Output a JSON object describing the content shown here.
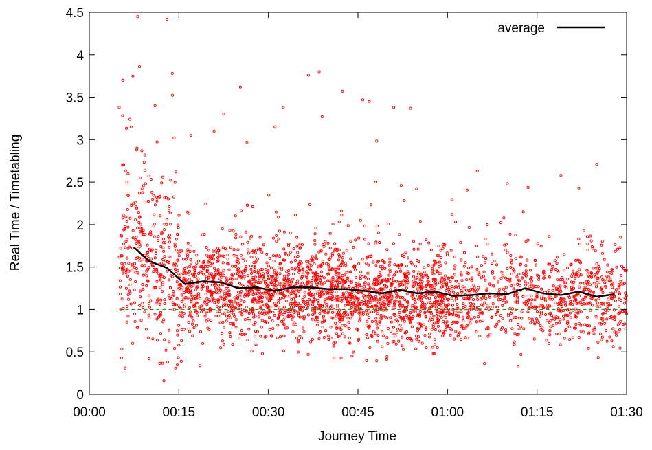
{
  "chart_data": {
    "type": "scatter",
    "xlabel": "Journey Time",
    "ylabel": "Real Time / Timetabling",
    "xlim": [
      0,
      90
    ],
    "ylim": [
      0,
      4.5
    ],
    "x_unit": "minutes",
    "x_ticks": [
      {
        "value": 0,
        "label": "00:00"
      },
      {
        "value": 15,
        "label": "00:15"
      },
      {
        "value": 30,
        "label": "00:30"
      },
      {
        "value": 45,
        "label": "00:45"
      },
      {
        "value": 60,
        "label": "01:00"
      },
      {
        "value": 75,
        "label": "01:15"
      },
      {
        "value": 90,
        "label": "01:30"
      }
    ],
    "y_ticks": [
      {
        "value": 0,
        "label": "0"
      },
      {
        "value": 0.5,
        "label": "0.5"
      },
      {
        "value": 1,
        "label": "1"
      },
      {
        "value": 1.5,
        "label": "1.5"
      },
      {
        "value": 2,
        "label": "2"
      },
      {
        "value": 2.5,
        "label": "2.5"
      },
      {
        "value": 3,
        "label": "3"
      },
      {
        "value": 3.5,
        "label": "3.5"
      },
      {
        "value": 4,
        "label": "4"
      },
      {
        "value": 4.5,
        "label": "4.5"
      }
    ],
    "grid": false,
    "legend": {
      "position": "top-right",
      "entries": [
        {
          "label": "average",
          "color": "#000000"
        }
      ]
    },
    "reference_line": {
      "y": 1,
      "color": "#2e8b2e",
      "style": "dashed"
    },
    "scatter_color": "#ff0000",
    "series": [
      {
        "name": "average",
        "type": "line",
        "color": "#000000",
        "x": [
          7.5,
          10,
          13,
          16,
          19,
          22,
          25,
          28,
          31,
          34,
          37,
          40,
          43,
          46,
          49,
          52,
          55,
          58,
          61,
          64,
          67,
          70,
          73,
          76,
          79,
          82,
          85,
          88
        ],
        "y": [
          1.73,
          1.57,
          1.49,
          1.3,
          1.33,
          1.32,
          1.25,
          1.26,
          1.22,
          1.26,
          1.26,
          1.24,
          1.24,
          1.22,
          1.19,
          1.23,
          1.19,
          1.21,
          1.16,
          1.17,
          1.19,
          1.18,
          1.25,
          1.19,
          1.17,
          1.21,
          1.15,
          1.18
        ]
      },
      {
        "type": "scatter",
        "color": "#ff0000",
        "x": [
          8.1,
          13.0,
          5.6,
          7.3,
          8.4,
          8.8,
          6.3,
          13.9,
          5.0,
          6.8,
          7.0,
          11.0,
          14.2,
          25.3,
          38.5,
          36.7,
          42.4,
          45.8,
          46.9,
          51.0,
          53.8,
          32.5,
          31.1,
          39.0,
          22.5,
          20.9,
          17.0,
          14.5,
          9.3,
          12.1,
          10.5,
          26.4,
          48.0,
          65.0,
          70.0,
          79.0,
          82.0,
          85.0,
          89.0,
          88.5,
          86.0,
          83.0,
          77.0,
          72.0,
          68.0,
          63.0,
          58.0,
          55.0,
          50.0,
          47.0,
          44.0,
          41.0,
          35.0,
          29.0,
          24.0,
          19.0,
          15.0,
          10.0,
          6.0,
          5.4,
          12.5,
          13.1,
          6.5,
          90.0,
          9.0,
          11.5,
          7.6
        ],
        "y": [
          4.45,
          4.42,
          3.7,
          3.75,
          3.86,
          2.87,
          2.5,
          3.78,
          3.38,
          3.24,
          3.15,
          3.4,
          3.02,
          3.62,
          3.8,
          3.76,
          3.57,
          3.47,
          3.45,
          3.38,
          3.37,
          3.38,
          3.15,
          3.27,
          3.3,
          3.1,
          3.05,
          2.62,
          2.82,
          2.49,
          2.38,
          2.97,
          2.5,
          2.63,
          2.48,
          2.58,
          2.43,
          2.71,
          1.85,
          1.71,
          1.35,
          0.82,
          0.6,
          0.77,
          0.8,
          0.78,
          0.76,
          0.75,
          0.6,
          0.55,
          0.45,
          0.43,
          0.62,
          0.48,
          0.59,
          0.6,
          0.58,
          0.42,
          0.31,
          0.43,
          0.16,
          0.38,
          0.92,
          0.95,
          1.02,
          1.12,
          1.08
        ]
      }
    ]
  }
}
